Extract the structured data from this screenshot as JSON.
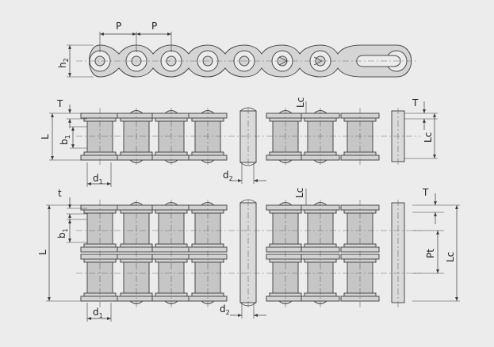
{
  "labels": {
    "pitch_left": "P",
    "pitch_right": "P",
    "plate_height": "h",
    "plate_height_sub": "2",
    "plate_thickness_simplex": "T",
    "pin_length_simplex": "Lc",
    "plate_thickness_simplex_right": "T",
    "overall_length_simplex": "L",
    "inner_width_simplex": "b",
    "inner_width_simplex_sub": "1",
    "overall_length_pin_simplex": "Lc",
    "roller_diameter_simplex": "d",
    "roller_diameter_simplex_sub": "1",
    "pin_diameter_simplex": "d",
    "pin_diameter_simplex_sub": "2",
    "plate_thickness_duplex": "t",
    "pin_length_duplex": "Lc",
    "plate_thickness_duplex_right": "T",
    "overall_length_duplex": "L",
    "inner_width_duplex": "b",
    "inner_width_duplex_sub": "1",
    "transverse_pitch": "Pt",
    "overall_length_pin_duplex": "Lc",
    "roller_diameter_duplex": "d",
    "roller_diameter_duplex_sub": "1",
    "pin_diameter_duplex": "d",
    "pin_diameter_duplex_sub": "2"
  }
}
